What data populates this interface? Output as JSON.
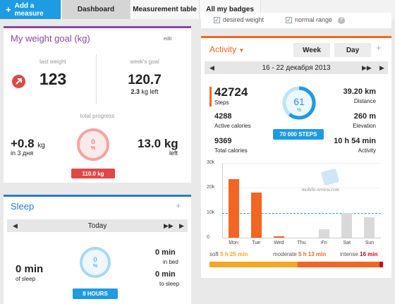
{
  "toolbar": {
    "add_measure": "Add a measure",
    "tabs": [
      "Dashboard",
      "Measurement table",
      "All my badges"
    ]
  },
  "weight": {
    "title": "My weight goal (kg)",
    "edit": "edit",
    "last_weight_label": "last weight",
    "last_weight": "123",
    "weeks_goal_label": "week's goal",
    "weeks_goal": "120.7",
    "left_value": "2.3",
    "left_unit": "kg left",
    "total_progress_label": "total progress",
    "change_value": "+0.8",
    "change_unit": "kg",
    "change_period": "in 3 дня",
    "progress_percent": "0",
    "percent_sign": "%",
    "target_pill": "110.0 kg",
    "remaining_value": "13.0",
    "remaining_unit": "kg",
    "remaining_label": "left",
    "accent": "#e04848"
  },
  "sleep": {
    "title": "Sleep",
    "day": "Today",
    "sleep_value": "0",
    "sleep_unit": "min",
    "sleep_label": "of sleep",
    "percent": "0",
    "percent_sign": "%",
    "goal_pill": "8 HOURS",
    "in_bed_value": "0 min",
    "in_bed_label": "in bed",
    "to_sleep_value": "0 min",
    "to_sleep_label": "to sleep"
  },
  "legend_top": {
    "desired_weight": "desired weight",
    "normal_range": "normal range",
    "help": "?"
  },
  "activity": {
    "title": "Activity",
    "week_btn": "Week",
    "day_btn": "Day",
    "range": "16 - 22 декабря 2013",
    "steps_value": "42724",
    "steps_label": "Steps",
    "active_cal_value": "4288",
    "active_cal_label": "Active calories",
    "total_cal_value": "9369",
    "total_cal_label": "Total calories",
    "percent": "61",
    "percent_sign": "%",
    "goal_pill": "70 000 STEPS",
    "distance_value": "39.20 km",
    "distance_label": "Distance",
    "elevation_value": "260 m",
    "elevation_label": "Elevation",
    "activity_value": "10 h 54 min",
    "activity_label": "Activity",
    "watermark": "mobile-review.com",
    "soft_label": "soft",
    "soft_value": "5 h 25 min",
    "moderate_label": "moderate",
    "moderate_value": "5 h 13 min",
    "intense_label": "intense",
    "intense_value": "16 min",
    "soft_fraction": 0.51,
    "moderate_fraction": 0.47,
    "intense_fraction": 0.02,
    "accent": "#f26522",
    "blue": "#1d9be3"
  },
  "chart_data": {
    "type": "bar",
    "categories": [
      "Mon",
      "Tue",
      "Wed",
      "Thu",
      "Fri",
      "Sat",
      "Sun"
    ],
    "series": [
      {
        "values": [
          23500,
          18000,
          700,
          0,
          3300,
          10000,
          8300
        ]
      }
    ],
    "colors": [
      "#f26522",
      "#f26522",
      "#f26522",
      "#cccccc",
      "#d9d9d9",
      "#d9d9d9",
      "#d9d9d9"
    ],
    "yticks": [
      "30k",
      "20k",
      "10k",
      "0"
    ],
    "ylim": [
      0,
      30000
    ],
    "goal_line": 10000
  }
}
